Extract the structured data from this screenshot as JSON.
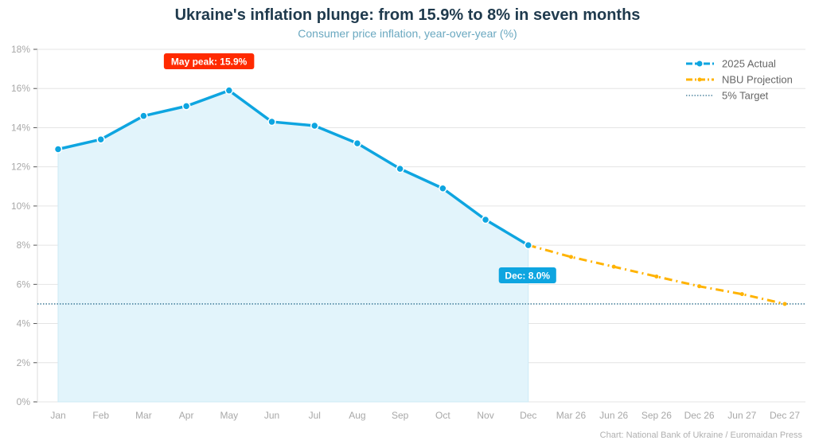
{
  "chart_data": {
    "type": "line",
    "title": "Ukraine's inflation plunge: from 15.9% to 8% in seven months",
    "subtitle": "Consumer price inflation, year-over-year (%)",
    "categories": [
      "Jan",
      "Feb",
      "Mar",
      "Apr",
      "May",
      "Jun",
      "Jul",
      "Aug",
      "Sep",
      "Oct",
      "Nov",
      "Dec",
      "Mar 26",
      "Jun 26",
      "Sep 26",
      "Dec 26",
      "Jun 27",
      "Dec 27"
    ],
    "ylim": [
      0,
      18
    ],
    "yticks": [
      "0%",
      "2%",
      "4%",
      "6%",
      "8%",
      "10%",
      "12%",
      "14%",
      "16%",
      "18%"
    ],
    "grid": true,
    "legend_position": "top-right",
    "series": [
      {
        "name": "2025 Actual",
        "color": "#0ea5e0",
        "style": "solid-markers-area",
        "values": [
          12.9,
          13.4,
          14.6,
          15.1,
          15.9,
          14.3,
          14.1,
          13.2,
          11.9,
          10.9,
          9.3,
          8.0,
          null,
          null,
          null,
          null,
          null,
          null
        ]
      },
      {
        "name": "NBU Projection",
        "color": "#ffb300",
        "style": "dash-dot",
        "values": [
          null,
          null,
          null,
          null,
          null,
          null,
          null,
          null,
          null,
          null,
          null,
          8.0,
          7.4,
          6.9,
          6.4,
          5.9,
          5.5,
          5.0
        ]
      },
      {
        "name": "5% Target",
        "color": "#2e6f8e",
        "style": "dotted",
        "value": 5
      }
    ],
    "annotations": [
      {
        "text": "May peak: 15.9%",
        "category": "May",
        "color": "#ff2a00"
      },
      {
        "text": "Dec: 8.0%",
        "category": "Dec",
        "color": "#0ea5e0"
      }
    ]
  },
  "source": "Chart: National Bank of Ukraine / Euromaidan Press"
}
